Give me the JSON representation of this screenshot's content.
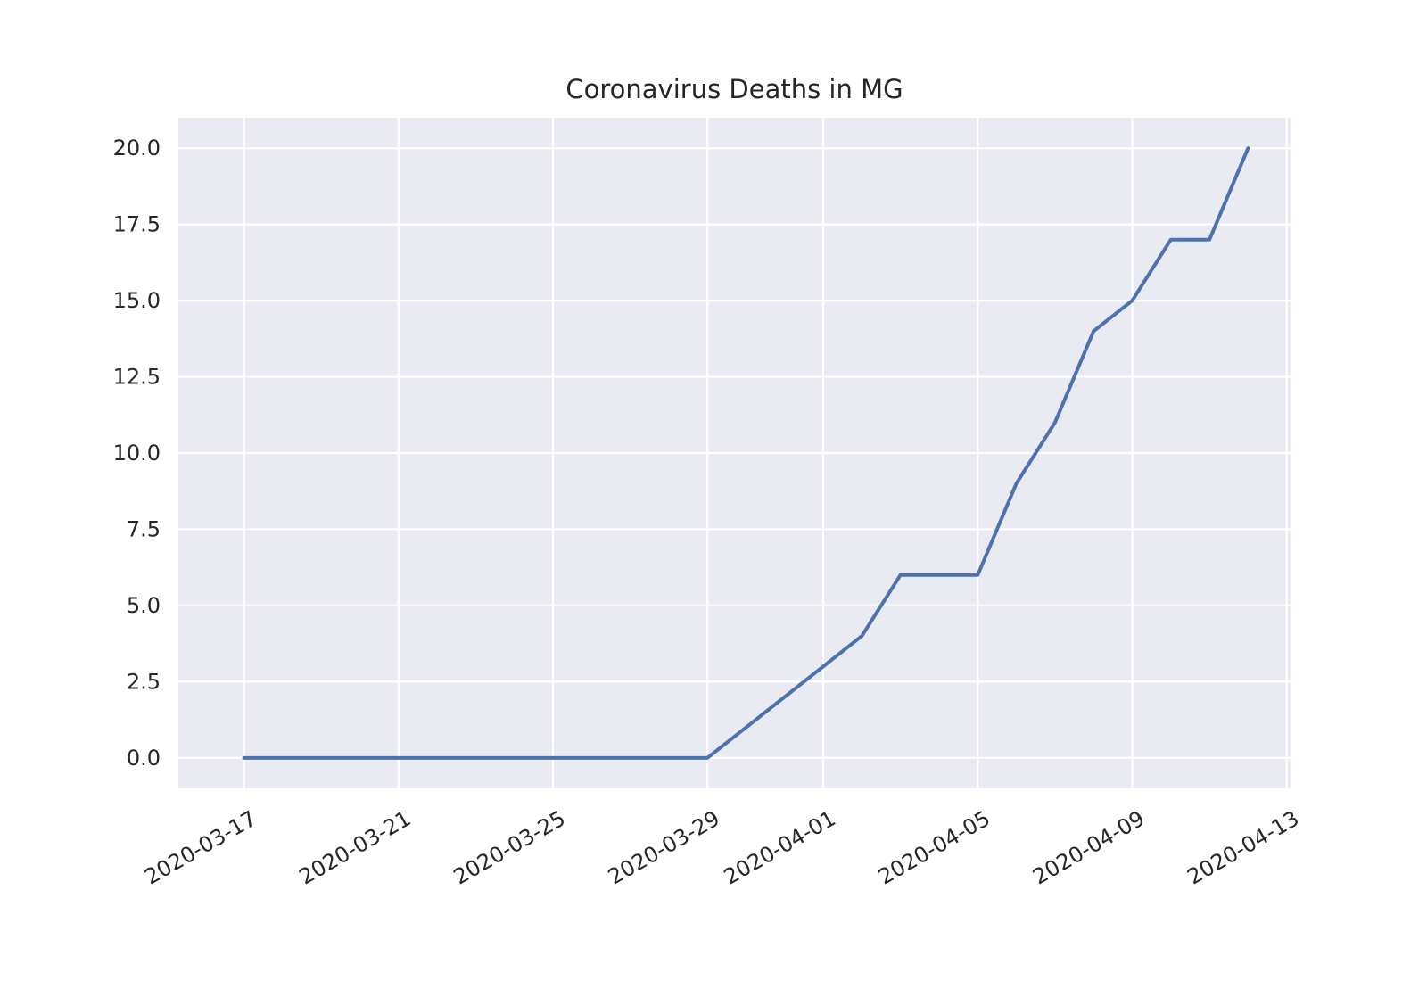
{
  "chart_data": {
    "type": "line",
    "title": "Coronavirus Deaths in MG",
    "xlabel": "",
    "ylabel": "",
    "x_ticks": [
      "2020-03-17",
      "2020-03-21",
      "2020-03-25",
      "2020-03-29",
      "2020-04-01",
      "2020-04-05",
      "2020-04-09",
      "2020-04-13"
    ],
    "y_ticks": [
      "0.0",
      "2.5",
      "5.0",
      "7.5",
      "10.0",
      "12.5",
      "15.0",
      "17.5",
      "20.0"
    ],
    "xlim": [
      "2020-03-15",
      "2020-04-13"
    ],
    "ylim": [
      -1,
      21
    ],
    "grid": true,
    "series": [
      {
        "x": [
          "2020-03-17",
          "2020-03-18",
          "2020-03-19",
          "2020-03-20",
          "2020-03-21",
          "2020-03-22",
          "2020-03-23",
          "2020-03-24",
          "2020-03-25",
          "2020-03-26",
          "2020-03-27",
          "2020-03-28",
          "2020-03-29",
          "2020-03-30",
          "2020-03-31",
          "2020-04-01",
          "2020-04-02",
          "2020-04-03",
          "2020-04-04",
          "2020-04-05",
          "2020-04-06",
          "2020-04-07",
          "2020-04-08",
          "2020-04-09",
          "2020-04-10",
          "2020-04-11",
          "2020-04-12"
        ],
        "values": [
          0,
          0,
          0,
          0,
          0,
          0,
          0,
          0,
          0,
          0,
          0,
          0,
          0,
          1,
          2,
          3,
          4,
          6,
          6,
          6,
          9,
          11,
          14,
          15,
          17,
          17,
          20
        ],
        "color": "#4c72b0"
      }
    ],
    "colors": {
      "background": "#eaeaf2",
      "grid": "#ffffff",
      "text": "#262626"
    }
  }
}
